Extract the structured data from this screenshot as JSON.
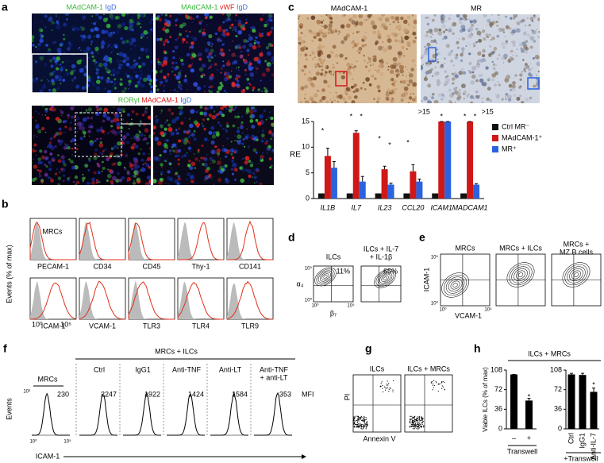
{
  "panel_labels": [
    "a",
    "b",
    "c",
    "d",
    "e",
    "f",
    "g",
    "h"
  ],
  "a": {
    "top_left": [
      "MAdCAM-1",
      "IgD"
    ],
    "top_right": [
      "MAdCAM-1",
      "vWF",
      "IgD"
    ],
    "bottom": [
      "RORγt",
      "MAdCAM-1",
      "IgD"
    ]
  },
  "b": {
    "title": "MRCs",
    "ylabel": "Events (% of max)",
    "row1": [
      "PECAM-1",
      "CD34",
      "CD45",
      "Thy-1",
      "CD141"
    ],
    "row2": [
      "ICAM-1",
      "VCAM-1",
      "TLR3",
      "TLR4",
      "TLR9"
    ],
    "ticks": [
      "10⁰",
      "10⁵"
    ]
  },
  "c": {
    "images": [
      "MAdCAM-1",
      "MR"
    ]
  },
  "d": {
    "titles": [
      "ILCs",
      [
        "ILCs + IL-7",
        "+ IL-1β"
      ]
    ],
    "percents": [
      "11%",
      "65%"
    ],
    "ylabel": "α₄",
    "xlabel": "β₇",
    "yticks": [
      "10⁵",
      "10⁰"
    ],
    "xticks": [
      "10⁰",
      "10⁵"
    ]
  },
  "e": {
    "titles": [
      [
        "MRCs"
      ],
      [
        "MRCs + ILCs"
      ],
      [
        "MRCs +",
        "MZ B cells"
      ]
    ],
    "ylabel": "ICAM-1",
    "xlabel": "VCAM-1",
    "yticks": [
      "10⁵",
      "10⁰"
    ],
    "xticks": [
      "10⁰",
      "10⁵"
    ]
  },
  "f": {
    "header": "MRCs + ILCs",
    "first": "MRCs",
    "columns": [
      [
        "Ctrl"
      ],
      [
        "IgG1"
      ],
      [
        "Anti-TNF"
      ],
      [
        "Anti-LT"
      ],
      [
        "Anti-TNF",
        "+ anti-LT"
      ]
    ],
    "mfi": [
      "230",
      "2247",
      "1922",
      "1424",
      "1584",
      "353"
    ],
    "mfi_label": "MFI",
    "ylabel": "Events",
    "xlabel": "ICAM-1",
    "ytick": "10³",
    "xticks": [
      "10⁰",
      "10⁵"
    ]
  },
  "g": {
    "titles": [
      "ILCs",
      "ILCs + MRCs"
    ],
    "ylabel": "PI",
    "xlabel": "Annexin V",
    "quadrants": [
      "37",
      "95"
    ]
  },
  "h": {
    "header": "ILCs + MRCs"
  },
  "chart_data": [
    {
      "type": "bar",
      "ylabel": "RE",
      "categories": [
        "IL1B",
        "IL7",
        "IL23",
        "CCL20",
        "ICAM1",
        "MADCAM1"
      ],
      "ylim": [
        0,
        15
      ],
      "yticks": [
        0,
        5,
        10,
        15
      ],
      "series": [
        {
          "name": "Ctrl MR⁻",
          "color": "#111111",
          "values": [
            1,
            1,
            1,
            1,
            1,
            1
          ]
        },
        {
          "name": "MAdCAM-1⁺",
          "color": "#d01818",
          "values": [
            8.3,
            12.8,
            5.7,
            5.3,
            15,
            15
          ],
          "errors": [
            1.5,
            0.4,
            0.6,
            1.3,
            0,
            0
          ],
          "value_labels": [
            null,
            null,
            null,
            null,
            ">15",
            ">15"
          ]
        },
        {
          "name": "MR⁺",
          "color": "#2a62e0",
          "values": [
            6,
            3.3,
            2.7,
            3.3,
            15,
            2.7
          ],
          "errors": [
            1.2,
            1,
            0.3,
            0.5,
            0,
            0.2
          ]
        }
      ],
      "stars": [
        "*",
        "*",
        "*",
        "*",
        "*",
        "*",
        "*",
        "*",
        "*"
      ]
    },
    {
      "type": "bar",
      "ylabel": "Viable ILCs (% of max)",
      "xlabel": "Transwell",
      "categories": [
        "–",
        "+"
      ],
      "ylim": [
        0,
        108
      ],
      "yticks": [
        0,
        36,
        72,
        108
      ],
      "series": [
        {
          "color": "#000000",
          "values": [
            100,
            52
          ],
          "errors": [
            0,
            4
          ]
        }
      ],
      "stars": [
        "*"
      ]
    },
    {
      "type": "bar",
      "xlabel": "+Transwell",
      "categories": [
        "Ctrl",
        "IgG1",
        "Anti-IL-7"
      ],
      "ylim": [
        0,
        108
      ],
      "yticks": [
        0,
        36,
        72,
        108
      ],
      "series": [
        {
          "color": "#000000",
          "values": [
            100,
            99,
            68
          ],
          "errors": [
            2,
            3,
            7
          ]
        }
      ],
      "stars": [
        "*"
      ]
    }
  ]
}
